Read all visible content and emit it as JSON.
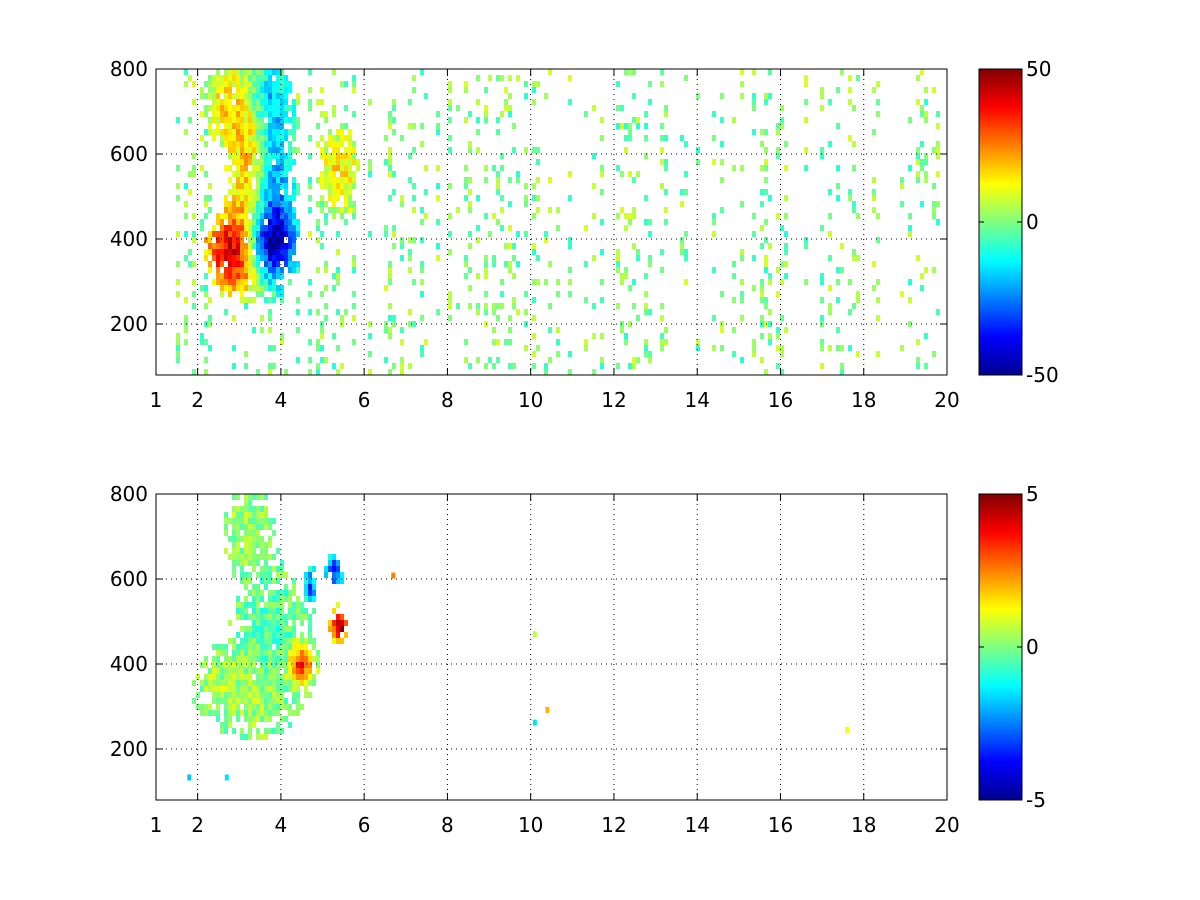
{
  "chart_data": [
    {
      "type": "heatmap",
      "title": "",
      "xlabel": "",
      "ylabel": "",
      "xlim": [
        1,
        20
      ],
      "ylim": [
        80,
        800
      ],
      "xticks": [
        1,
        2,
        4,
        6,
        8,
        10,
        12,
        14,
        16,
        18,
        20
      ],
      "xtick_labels": [
        "1",
        "2",
        "4",
        "6",
        "8",
        "10",
        "12",
        "14",
        "16",
        "18",
        "20"
      ],
      "yticks": [
        200,
        400,
        600,
        800
      ],
      "ytick_labels": [
        "200",
        "400",
        "600",
        "800"
      ],
      "grid": true,
      "colormap": "jet",
      "clim": [
        -50,
        50
      ],
      "colorbar_ticks": [
        -50,
        0,
        50
      ],
      "colorbar_labels": [
        "-50",
        "0",
        "50"
      ],
      "features": [
        {
          "kind": "positive-blob",
          "x_center": 2.9,
          "y_center": 370,
          "x_spread": 0.5,
          "y_spread": 70,
          "value": 45
        },
        {
          "kind": "positive-ridge",
          "x_center": 3.3,
          "y_center": 600,
          "x_spread": 0.35,
          "y_spread": 150,
          "value": 22
        },
        {
          "kind": "positive-blob",
          "x_center": 2.7,
          "y_center": 720,
          "x_spread": 0.4,
          "y_spread": 70,
          "value": 14
        },
        {
          "kind": "negative-blob",
          "x_center": 3.7,
          "y_center": 390,
          "x_spread": 0.45,
          "y_spread": 60,
          "value": -45
        },
        {
          "kind": "negative-ridge",
          "x_center": 3.8,
          "y_center": 560,
          "x_spread": 0.35,
          "y_spread": 160,
          "value": -25
        },
        {
          "kind": "negative-blob",
          "x_center": 3.5,
          "y_center": 740,
          "x_spread": 0.4,
          "y_spread": 60,
          "value": -14
        },
        {
          "kind": "positive-blob",
          "x_center": 5.4,
          "y_center": 560,
          "x_spread": 0.35,
          "y_spread": 70,
          "value": 15
        }
      ],
      "background": {
        "x_range": [
          1,
          20
        ],
        "value_range": [
          -9,
          9
        ]
      }
    },
    {
      "type": "heatmap",
      "title": "",
      "xlabel": "",
      "ylabel": "",
      "xlim": [
        1,
        20
      ],
      "ylim": [
        80,
        800
      ],
      "xticks": [
        1,
        2,
        4,
        6,
        8,
        10,
        12,
        14,
        16,
        18,
        20
      ],
      "xtick_labels": [
        "1",
        "2",
        "4",
        "6",
        "8",
        "10",
        "12",
        "14",
        "16",
        "18",
        "20"
      ],
      "yticks": [
        200,
        400,
        600,
        800
      ],
      "ytick_labels": [
        "200",
        "400",
        "600",
        "800"
      ],
      "grid": true,
      "colormap": "jet",
      "clim": [
        -5,
        5
      ],
      "colorbar_ticks": [
        -5,
        0,
        5
      ],
      "colorbar_labels": [
        "-5",
        "0",
        "5"
      ],
      "features": [
        {
          "kind": "green-region",
          "x_center": 3.1,
          "y_center": 340,
          "x_spread": 0.8,
          "y_spread": 70,
          "value": 0.5
        },
        {
          "kind": "green-region",
          "x_center": 3.8,
          "y_center": 460,
          "x_spread": 0.6,
          "y_spread": 110,
          "value": -0.5
        },
        {
          "kind": "green-region",
          "x_center": 3.2,
          "y_center": 720,
          "x_spread": 0.4,
          "y_spread": 70,
          "value": 0.3
        },
        {
          "kind": "positive-patch",
          "x_center": 5.4,
          "y_center": 490,
          "x_spread": 0.15,
          "y_spread": 30,
          "value": 4.8
        },
        {
          "kind": "positive-patch",
          "x_center": 4.5,
          "y_center": 400,
          "x_spread": 0.2,
          "y_spread": 30,
          "value": 3.5
        },
        {
          "kind": "negative-patch",
          "x_center": 5.3,
          "y_center": 620,
          "x_spread": 0.15,
          "y_spread": 30,
          "value": -3.5
        },
        {
          "kind": "negative-patch",
          "x_center": 4.7,
          "y_center": 580,
          "x_spread": 0.1,
          "y_spread": 30,
          "value": -3
        }
      ],
      "isolated_points": [
        {
          "x": 10.1,
          "y": 470,
          "value": 0.6
        },
        {
          "x": 10.1,
          "y": 262,
          "value": -1.5
        },
        {
          "x": 10.4,
          "y": 292,
          "value": 2
        },
        {
          "x": 17.6,
          "y": 245,
          "value": 1.2
        },
        {
          "x": 6.7,
          "y": 608,
          "value": 2.5
        },
        {
          "x": 1.8,
          "y": 133,
          "value": -1.8
        },
        {
          "x": 2.7,
          "y": 133,
          "value": -1.5
        }
      ]
    }
  ]
}
